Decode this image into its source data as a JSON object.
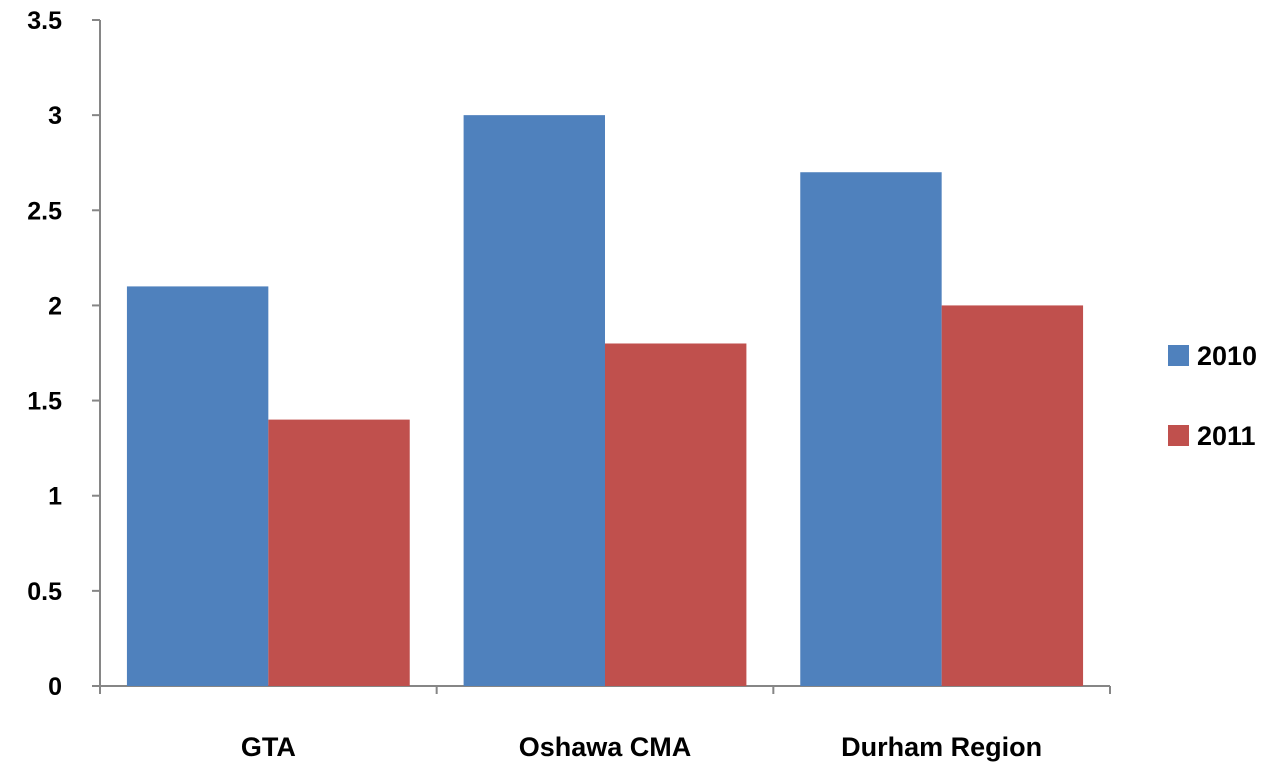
{
  "chart_data": {
    "type": "bar",
    "title": "",
    "xlabel": "",
    "ylabel": "",
    "categories": [
      "GTA",
      "Oshawa CMA",
      "Durham Region"
    ],
    "series": [
      {
        "name": "2010",
        "color": "#4F81BD",
        "values": [
          2.1,
          3.0,
          2.7
        ]
      },
      {
        "name": "2011",
        "color": "#C0504D",
        "values": [
          1.4,
          1.8,
          2.0
        ]
      }
    ],
    "ylim": [
      0,
      3.5
    ],
    "yticks": [
      "0",
      "0.5",
      "1",
      "1.5",
      "2",
      "2.5",
      "3",
      "3.5"
    ],
    "grid": false,
    "legend_position": "right"
  }
}
